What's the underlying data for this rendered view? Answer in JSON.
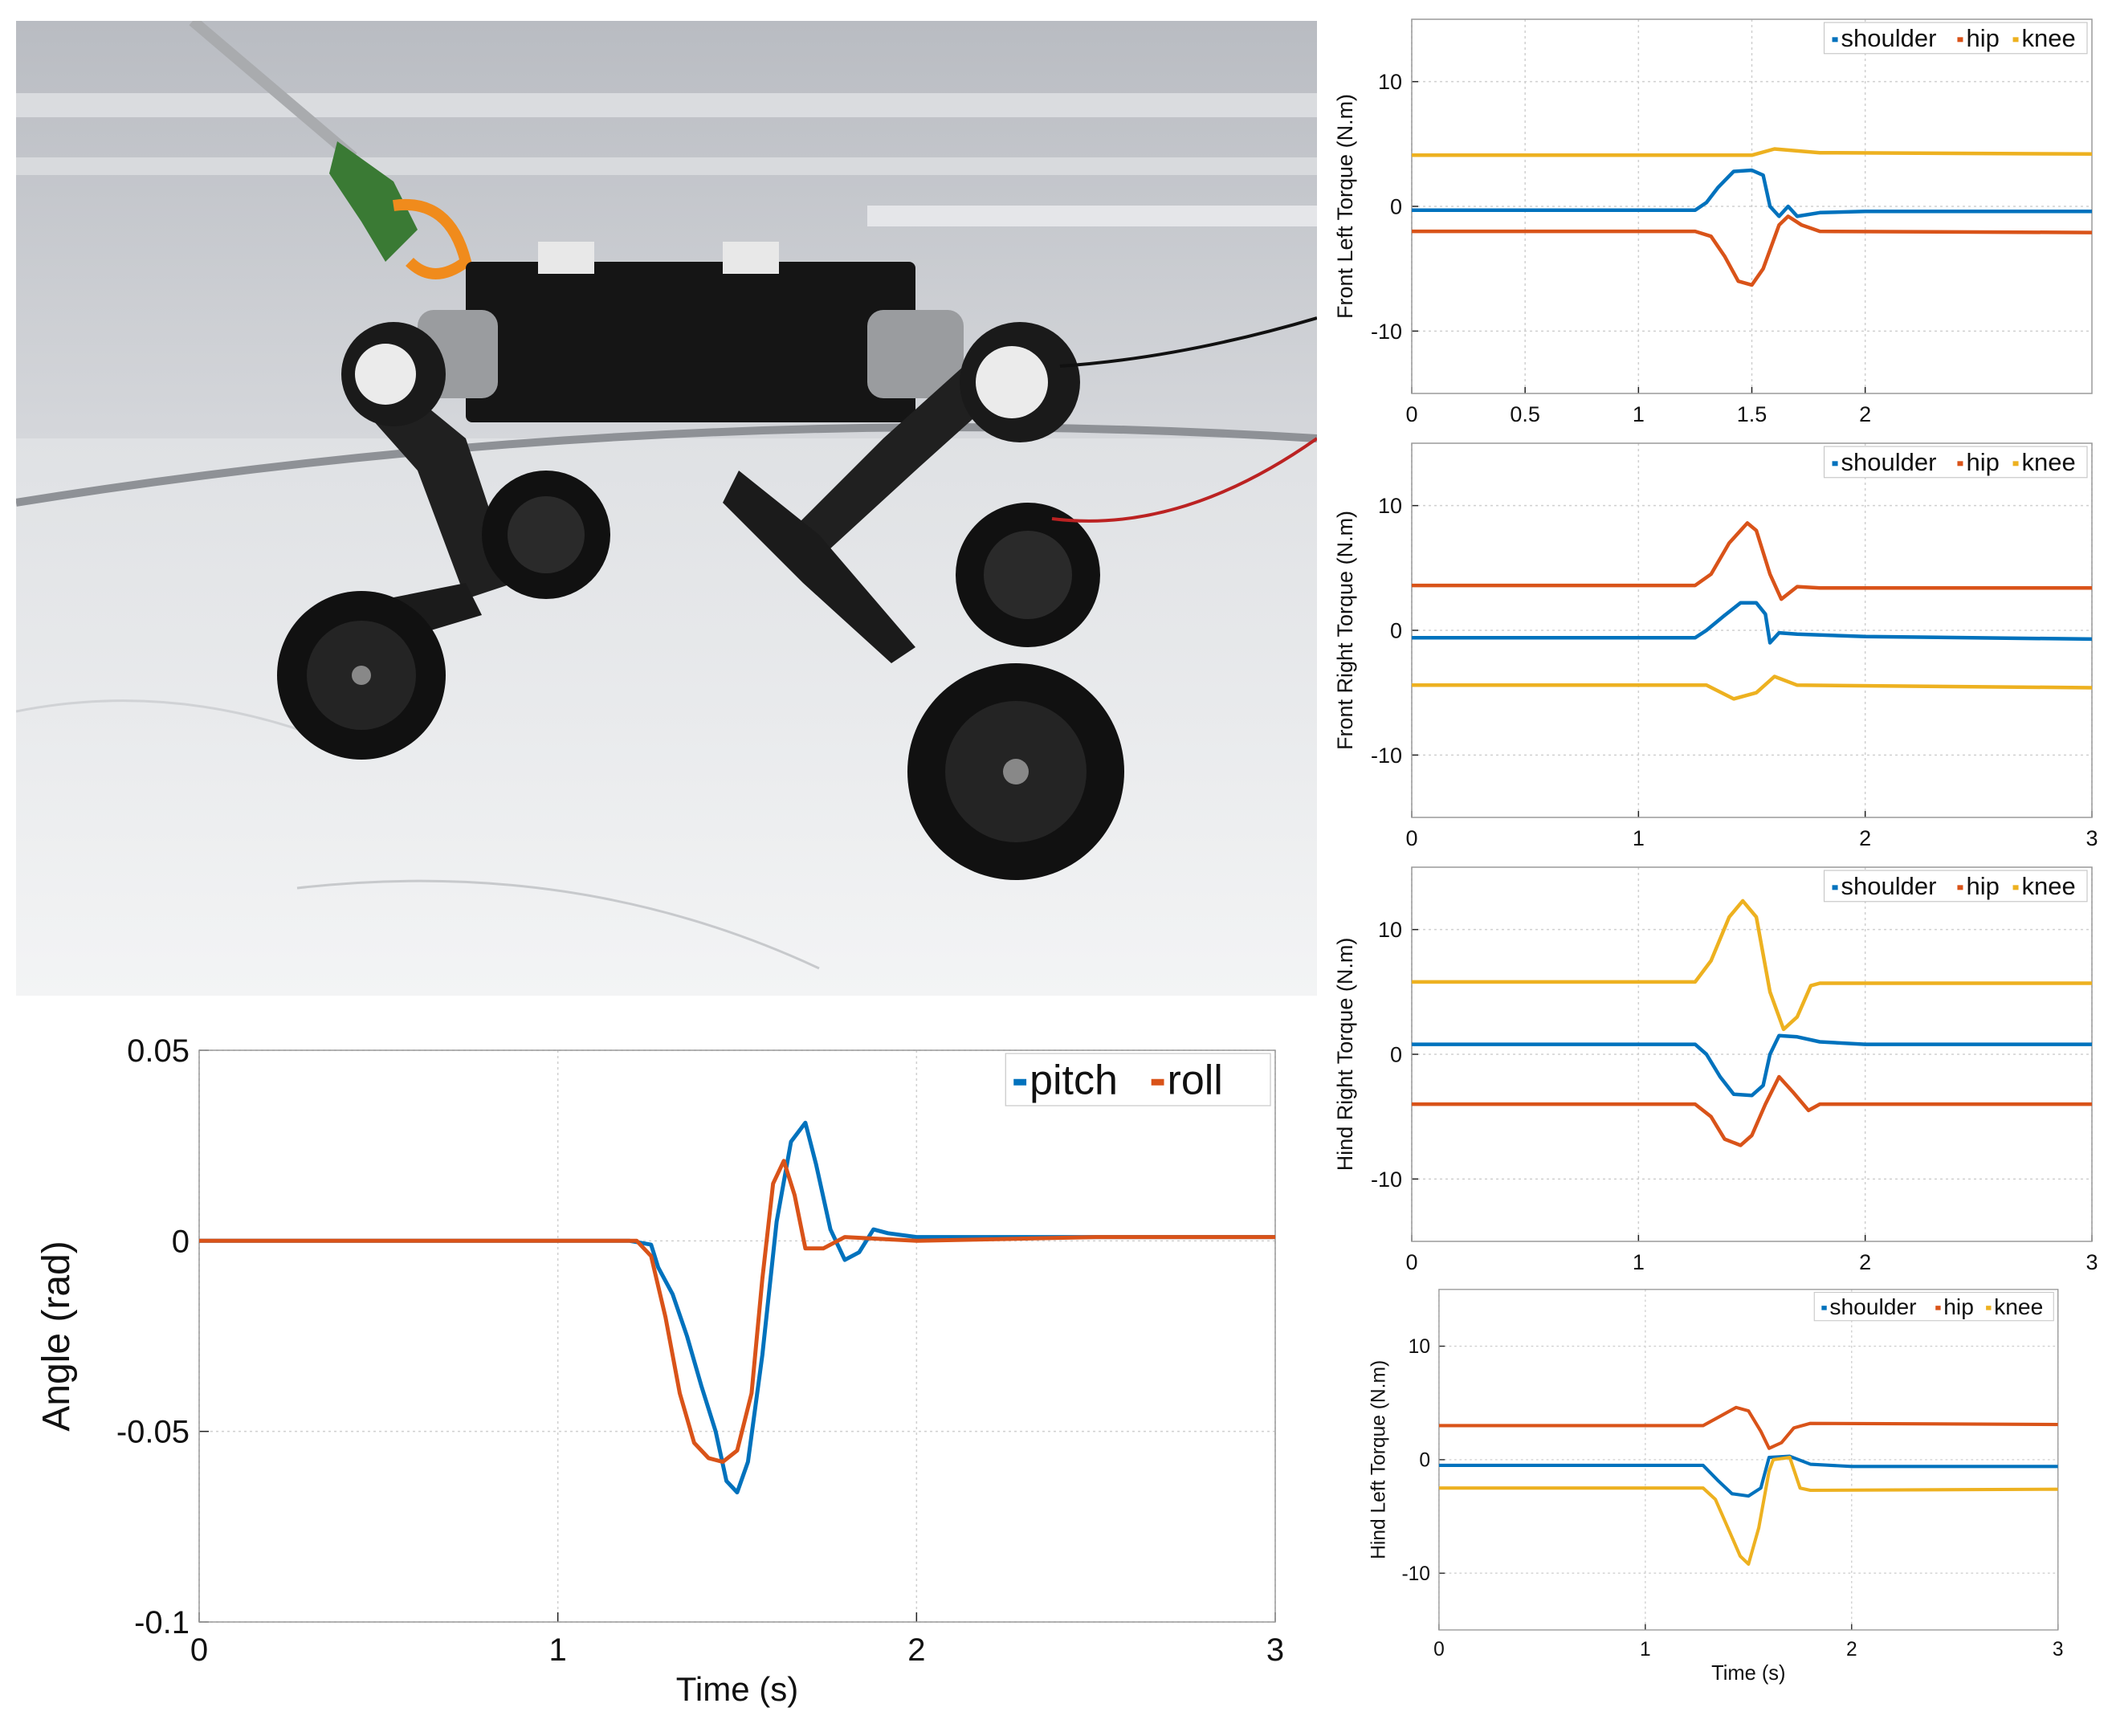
{
  "colors": {
    "pitch": "#0072BD",
    "roll": "#D95319",
    "shoulder": "#0072BD",
    "hip": "#D95319",
    "knee": "#EDB120",
    "grid": "#d0d0d0",
    "axis": "#222222"
  },
  "photo": {
    "subject": "wheel-legged-quadruped-robot"
  },
  "chart_data": [
    {
      "id": "angle",
      "type": "line",
      "xlabel": "Time (s)",
      "ylabel": "Angle (rad)",
      "xlim": [
        0,
        3
      ],
      "ylim": [
        -0.1,
        0.05
      ],
      "xticks": [
        0,
        1,
        2,
        3
      ],
      "xtick_labels": [
        "0",
        "1",
        "2",
        "3"
      ],
      "yticks": [
        0.05,
        0,
        -0.05,
        -0.1
      ],
      "ytick_labels": [
        "0.05",
        "0",
        "-0.05",
        "-0.1"
      ],
      "grid": true,
      "legend": "top-right",
      "series": [
        {
          "name": "pitch",
          "color": "#0072BD",
          "points": [
            [
              0,
              0
            ],
            [
              1.2,
              0
            ],
            [
              1.26,
              -0.001
            ],
            [
              1.28,
              -0.007
            ],
            [
              1.32,
              -0.014
            ],
            [
              1.36,
              -0.025
            ],
            [
              1.4,
              -0.038
            ],
            [
              1.44,
              -0.05
            ],
            [
              1.47,
              -0.063
            ],
            [
              1.5,
              -0.066
            ],
            [
              1.53,
              -0.058
            ],
            [
              1.57,
              -0.03
            ],
            [
              1.61,
              0.005
            ],
            [
              1.65,
              0.026
            ],
            [
              1.69,
              0.031
            ],
            [
              1.72,
              0.02
            ],
            [
              1.76,
              0.003
            ],
            [
              1.8,
              -0.005
            ],
            [
              1.84,
              -0.003
            ],
            [
              1.88,
              0.003
            ],
            [
              1.92,
              0.002
            ],
            [
              2,
              0.001
            ],
            [
              2.5,
              0.001
            ],
            [
              3,
              0.001
            ]
          ]
        },
        {
          "name": "roll",
          "color": "#D95319",
          "points": [
            [
              0,
              0
            ],
            [
              1.22,
              0
            ],
            [
              1.26,
              -0.004
            ],
            [
              1.3,
              -0.02
            ],
            [
              1.34,
              -0.04
            ],
            [
              1.38,
              -0.053
            ],
            [
              1.42,
              -0.057
            ],
            [
              1.46,
              -0.058
            ],
            [
              1.5,
              -0.055
            ],
            [
              1.54,
              -0.04
            ],
            [
              1.57,
              -0.01
            ],
            [
              1.6,
              0.015
            ],
            [
              1.63,
              0.021
            ],
            [
              1.66,
              0.012
            ],
            [
              1.69,
              -0.002
            ],
            [
              1.74,
              -0.002
            ],
            [
              1.8,
              0.001
            ],
            [
              2,
              0
            ],
            [
              2.5,
              0.001
            ],
            [
              3,
              0.001
            ]
          ]
        }
      ]
    },
    {
      "id": "front-left",
      "type": "line",
      "xlabel": "",
      "ylabel": "Front Left Torque (N.m)",
      "xlim": [
        0,
        3
      ],
      "ylim": [
        -15,
        15
      ],
      "xticks": [
        0,
        0.5,
        1,
        1.5,
        2
      ],
      "xtick_labels": [
        "0",
        "0.5",
        "1",
        "1.5",
        "2"
      ],
      "yticks": [
        10,
        0,
        -10
      ],
      "ytick_labels": [
        "10",
        "0",
        "-10"
      ],
      "grid": true,
      "legend": "top-right",
      "series": [
        {
          "name": "shoulder",
          "color": "#0072BD",
          "points": [
            [
              0,
              -0.3
            ],
            [
              1.25,
              -0.3
            ],
            [
              1.3,
              0.3
            ],
            [
              1.35,
              1.5
            ],
            [
              1.42,
              2.8
            ],
            [
              1.5,
              2.9
            ],
            [
              1.55,
              2.5
            ],
            [
              1.58,
              0
            ],
            [
              1.62,
              -0.8
            ],
            [
              1.66,
              0
            ],
            [
              1.7,
              -0.8
            ],
            [
              1.8,
              -0.5
            ],
            [
              2,
              -0.4
            ],
            [
              3,
              -0.4
            ]
          ]
        },
        {
          "name": "hip",
          "color": "#D95319",
          "points": [
            [
              0,
              -2
            ],
            [
              1.25,
              -2
            ],
            [
              1.32,
              -2.4
            ],
            [
              1.38,
              -4
            ],
            [
              1.44,
              -6
            ],
            [
              1.5,
              -6.3
            ],
            [
              1.55,
              -5
            ],
            [
              1.62,
              -1.5
            ],
            [
              1.66,
              -0.8
            ],
            [
              1.72,
              -1.5
            ],
            [
              1.8,
              -2
            ],
            [
              3,
              -2.1
            ]
          ]
        },
        {
          "name": "knee",
          "color": "#EDB120",
          "points": [
            [
              0,
              4.1
            ],
            [
              1.5,
              4.1
            ],
            [
              1.6,
              4.6
            ],
            [
              1.8,
              4.3
            ],
            [
              3,
              4.2
            ]
          ]
        }
      ]
    },
    {
      "id": "front-right",
      "type": "line",
      "xlabel": "",
      "ylabel": "Front Right Torque (N.m)",
      "xlim": [
        0,
        3
      ],
      "ylim": [
        -15,
        15
      ],
      "xticks": [
        0,
        1,
        2,
        3
      ],
      "xtick_labels": [
        "0",
        "1",
        "2",
        "3"
      ],
      "yticks": [
        10,
        0,
        -10
      ],
      "ytick_labels": [
        "10",
        "0",
        "-10"
      ],
      "grid": true,
      "legend": "top-right",
      "series": [
        {
          "name": "shoulder",
          "color": "#0072BD",
          "points": [
            [
              0,
              -0.6
            ],
            [
              1.25,
              -0.6
            ],
            [
              1.3,
              0
            ],
            [
              1.38,
              1.2
            ],
            [
              1.45,
              2.2
            ],
            [
              1.52,
              2.2
            ],
            [
              1.56,
              1.3
            ],
            [
              1.58,
              -1
            ],
            [
              1.62,
              -0.2
            ],
            [
              1.7,
              -0.3
            ],
            [
              2,
              -0.5
            ],
            [
              3,
              -0.7
            ]
          ]
        },
        {
          "name": "hip",
          "color": "#D95319",
          "points": [
            [
              0,
              3.6
            ],
            [
              1.25,
              3.6
            ],
            [
              1.32,
              4.5
            ],
            [
              1.4,
              7
            ],
            [
              1.48,
              8.6
            ],
            [
              1.52,
              8
            ],
            [
              1.58,
              4.5
            ],
            [
              1.63,
              2.5
            ],
            [
              1.7,
              3.5
            ],
            [
              1.8,
              3.4
            ],
            [
              3,
              3.4
            ]
          ]
        },
        {
          "name": "knee",
          "color": "#EDB120",
          "points": [
            [
              0,
              -4.4
            ],
            [
              1.3,
              -4.4
            ],
            [
              1.42,
              -5.5
            ],
            [
              1.52,
              -5
            ],
            [
              1.6,
              -3.7
            ],
            [
              1.7,
              -4.4
            ],
            [
              3,
              -4.6
            ]
          ]
        }
      ]
    },
    {
      "id": "hind-right",
      "type": "line",
      "xlabel": "",
      "ylabel": "Hind Right Torque (N.m)",
      "xlim": [
        0,
        3
      ],
      "ylim": [
        -15,
        15
      ],
      "xticks": [
        0,
        1,
        2,
        3
      ],
      "xtick_labels": [
        "0",
        "1",
        "2",
        "3"
      ],
      "yticks": [
        10,
        0,
        -10
      ],
      "ytick_labels": [
        "10",
        "0",
        "-10"
      ],
      "grid": true,
      "legend": "top-right",
      "series": [
        {
          "name": "shoulder",
          "color": "#0072BD",
          "points": [
            [
              0,
              0.8
            ],
            [
              1.25,
              0.8
            ],
            [
              1.3,
              0
            ],
            [
              1.36,
              -1.8
            ],
            [
              1.42,
              -3.2
            ],
            [
              1.5,
              -3.3
            ],
            [
              1.55,
              -2.5
            ],
            [
              1.58,
              0
            ],
            [
              1.62,
              1.5
            ],
            [
              1.7,
              1.4
            ],
            [
              1.8,
              1
            ],
            [
              2,
              0.8
            ],
            [
              3,
              0.8
            ]
          ]
        },
        {
          "name": "hip",
          "color": "#D95319",
          "points": [
            [
              0,
              -4
            ],
            [
              1.25,
              -4
            ],
            [
              1.32,
              -5
            ],
            [
              1.38,
              -6.8
            ],
            [
              1.45,
              -7.3
            ],
            [
              1.5,
              -6.5
            ],
            [
              1.56,
              -4
            ],
            [
              1.62,
              -1.8
            ],
            [
              1.68,
              -3
            ],
            [
              1.75,
              -4.5
            ],
            [
              1.8,
              -4
            ],
            [
              3,
              -4
            ]
          ]
        },
        {
          "name": "knee",
          "color": "#EDB120",
          "points": [
            [
              0,
              5.8
            ],
            [
              1.25,
              5.8
            ],
            [
              1.32,
              7.5
            ],
            [
              1.4,
              11
            ],
            [
              1.46,
              12.3
            ],
            [
              1.52,
              11
            ],
            [
              1.58,
              5
            ],
            [
              1.64,
              2
            ],
            [
              1.7,
              3
            ],
            [
              1.76,
              5.5
            ],
            [
              1.8,
              5.7
            ],
            [
              3,
              5.7
            ]
          ]
        }
      ]
    },
    {
      "id": "hind-left",
      "type": "line",
      "xlabel": "Time (s)",
      "ylabel": "Hind Left Torque (N.m)",
      "xlim": [
        0,
        3
      ],
      "ylim": [
        -15,
        15
      ],
      "xticks": [
        0,
        1,
        2,
        3
      ],
      "xtick_labels": [
        "0",
        "1",
        "2",
        "3"
      ],
      "yticks": [
        10,
        0,
        -10
      ],
      "ytick_labels": [
        "10",
        "0",
        "-10"
      ],
      "grid": true,
      "legend": "top-right",
      "series": [
        {
          "name": "shoulder",
          "color": "#0072BD",
          "points": [
            [
              0,
              -0.5
            ],
            [
              1.28,
              -0.5
            ],
            [
              1.35,
              -1.8
            ],
            [
              1.42,
              -3
            ],
            [
              1.5,
              -3.2
            ],
            [
              1.56,
              -2.5
            ],
            [
              1.6,
              0.2
            ],
            [
              1.7,
              0.3
            ],
            [
              1.8,
              -0.4
            ],
            [
              2,
              -0.6
            ],
            [
              3,
              -0.6
            ]
          ]
        },
        {
          "name": "hip",
          "color": "#D95319",
          "points": [
            [
              0,
              3
            ],
            [
              1.28,
              3
            ],
            [
              1.36,
              3.8
            ],
            [
              1.44,
              4.6
            ],
            [
              1.5,
              4.3
            ],
            [
              1.56,
              2.5
            ],
            [
              1.6,
              1
            ],
            [
              1.66,
              1.5
            ],
            [
              1.72,
              2.8
            ],
            [
              1.8,
              3.2
            ],
            [
              3,
              3.1
            ]
          ]
        },
        {
          "name": "knee",
          "color": "#EDB120",
          "points": [
            [
              0,
              -2.5
            ],
            [
              1.28,
              -2.5
            ],
            [
              1.34,
              -3.5
            ],
            [
              1.4,
              -6
            ],
            [
              1.46,
              -8.5
            ],
            [
              1.5,
              -9.2
            ],
            [
              1.55,
              -6
            ],
            [
              1.6,
              -1
            ],
            [
              1.62,
              0
            ],
            [
              1.7,
              0.2
            ],
            [
              1.75,
              -2.5
            ],
            [
              1.8,
              -2.7
            ],
            [
              3,
              -2.6
            ]
          ]
        }
      ]
    }
  ]
}
